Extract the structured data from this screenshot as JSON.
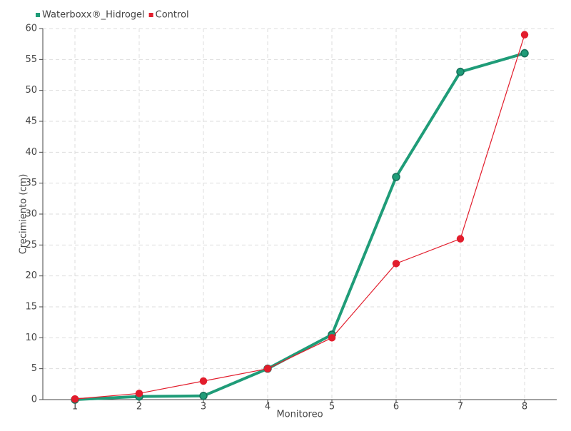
{
  "chart_data": {
    "type": "line",
    "x_label": "Monitoreo",
    "y_label": "Crecimiento (cm)",
    "x": [
      1,
      2,
      3,
      4,
      5,
      6,
      7,
      8
    ],
    "xlim": [
      0.5,
      8.5
    ],
    "xticks": [
      1,
      2,
      3,
      4,
      5,
      6,
      7,
      8
    ],
    "ylim": [
      0,
      60
    ],
    "yticks": [
      0,
      5,
      10,
      15,
      20,
      25,
      30,
      35,
      40,
      45,
      50,
      55,
      60
    ],
    "grid": true,
    "legend": "top-left",
    "series": [
      {
        "name": "Waterboxx®_Hidrogel",
        "color": "#1f9c78",
        "values": [
          0,
          0.5,
          0.6,
          5,
          10.5,
          36,
          53,
          56
        ]
      },
      {
        "name": "Control",
        "color": "#e21d2c",
        "values": [
          0.1,
          1,
          3,
          5,
          10,
          22,
          26,
          59
        ]
      }
    ]
  }
}
